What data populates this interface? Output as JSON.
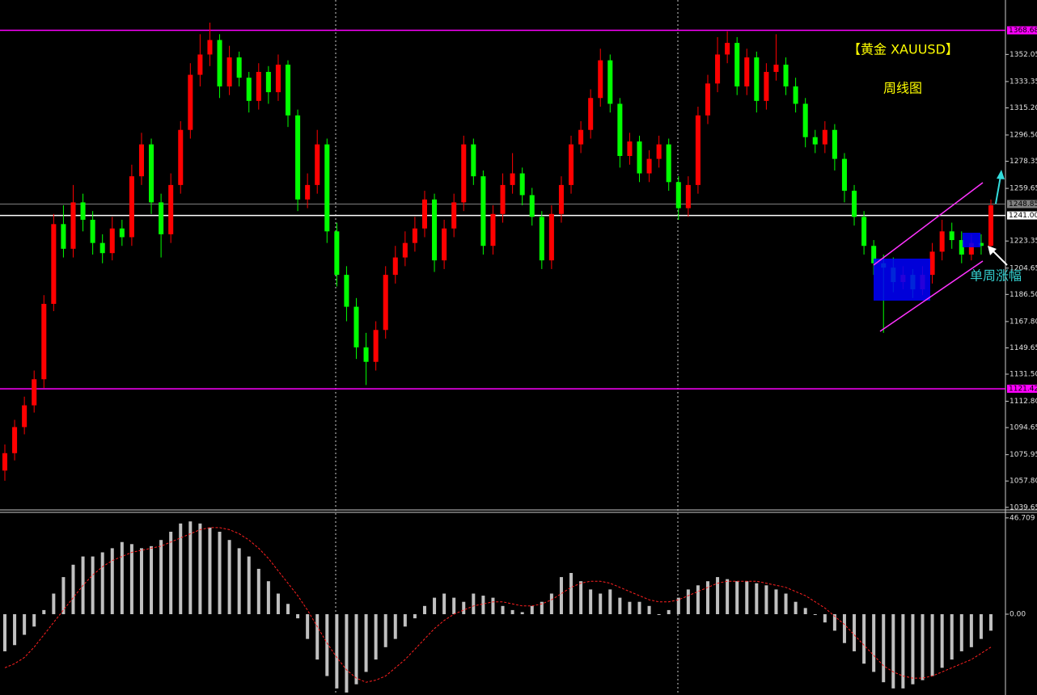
{
  "chart_data": {
    "type": "candlestick",
    "title": "【黄金 XAUUSD】",
    "subtitle": "周线图",
    "annotation": "单周涨幅",
    "up_color": "#ff0000",
    "down_color": "#00ff00",
    "open": [
      1065,
      1077,
      1095,
      1110,
      1128,
      1180,
      1235,
      1218,
      1250,
      1238,
      1222,
      1215,
      1232,
      1226,
      1268,
      1290,
      1250,
      1228,
      1262,
      1300,
      1338,
      1352,
      1362,
      1330,
      1350,
      1336,
      1320,
      1340,
      1326,
      1345,
      1310,
      1252,
      1262,
      1290,
      1230,
      1200,
      1178,
      1150,
      1140,
      1162,
      1200,
      1212,
      1222,
      1232,
      1252,
      1210,
      1232,
      1250,
      1290,
      1268,
      1220,
      1242,
      1262,
      1270,
      1255,
      1240,
      1210,
      1242,
      1262,
      1290,
      1300,
      1322,
      1348,
      1318,
      1282,
      1292,
      1270,
      1280,
      1290,
      1264,
      1246,
      1262,
      1310,
      1332,
      1352,
      1360,
      1330,
      1350,
      1320,
      1340,
      1345,
      1330,
      1318,
      1295,
      1290,
      1300,
      1280,
      1258,
      1240,
      1220,
      1208,
      1205,
      1195,
      1200,
      1190,
      1200,
      1216,
      1230,
      1224,
      1214,
      1222,
      1220
    ],
    "high": [
      1083,
      1100,
      1116,
      1134,
      1186,
      1242,
      1248,
      1262,
      1256,
      1244,
      1228,
      1240,
      1238,
      1276,
      1298,
      1294,
      1256,
      1270,
      1306,
      1346,
      1366,
      1374,
      1366,
      1358,
      1354,
      1340,
      1346,
      1344,
      1352,
      1348,
      1314,
      1270,
      1300,
      1294,
      1236,
      1206,
      1184,
      1160,
      1168,
      1206,
      1220,
      1230,
      1240,
      1258,
      1256,
      1238,
      1256,
      1296,
      1294,
      1272,
      1248,
      1270,
      1284,
      1274,
      1260,
      1244,
      1248,
      1268,
      1296,
      1306,
      1328,
      1356,
      1352,
      1322,
      1298,
      1296,
      1286,
      1296,
      1294,
      1268,
      1268,
      1316,
      1338,
      1364,
      1368,
      1364,
      1356,
      1354,
      1346,
      1366,
      1350,
      1336,
      1322,
      1300,
      1306,
      1304,
      1284,
      1262,
      1244,
      1224,
      1214,
      1212,
      1206,
      1204,
      1206,
      1222,
      1238,
      1236,
      1230,
      1228,
      1228,
      1252
    ],
    "low": [
      1058,
      1072,
      1090,
      1105,
      1122,
      1175,
      1212,
      1212,
      1230,
      1214,
      1208,
      1210,
      1220,
      1220,
      1262,
      1242,
      1212,
      1222,
      1256,
      1294,
      1330,
      1344,
      1322,
      1324,
      1330,
      1312,
      1314,
      1318,
      1320,
      1302,
      1244,
      1246,
      1256,
      1222,
      1192,
      1168,
      1142,
      1124,
      1134,
      1156,
      1194,
      1206,
      1216,
      1226,
      1202,
      1204,
      1226,
      1244,
      1262,
      1214,
      1214,
      1236,
      1256,
      1248,
      1234,
      1204,
      1204,
      1236,
      1256,
      1284,
      1294,
      1316,
      1312,
      1274,
      1276,
      1264,
      1264,
      1274,
      1258,
      1238,
      1240,
      1256,
      1304,
      1326,
      1346,
      1324,
      1324,
      1312,
      1314,
      1334,
      1324,
      1312,
      1288,
      1284,
      1284,
      1272,
      1250,
      1234,
      1214,
      1200,
      1160,
      1188,
      1190,
      1184,
      1186,
      1194,
      1210,
      1218,
      1208,
      1210,
      1214,
      1216
    ],
    "close": [
      1077,
      1095,
      1110,
      1128,
      1180,
      1235,
      1218,
      1250,
      1238,
      1222,
      1215,
      1232,
      1226,
      1268,
      1290,
      1250,
      1228,
      1262,
      1300,
      1338,
      1352,
      1362,
      1330,
      1350,
      1336,
      1320,
      1340,
      1326,
      1345,
      1310,
      1252,
      1262,
      1290,
      1230,
      1200,
      1178,
      1150,
      1140,
      1162,
      1200,
      1212,
      1222,
      1232,
      1252,
      1210,
      1232,
      1250,
      1290,
      1268,
      1220,
      1242,
      1262,
      1270,
      1255,
      1240,
      1210,
      1242,
      1262,
      1290,
      1300,
      1322,
      1348,
      1318,
      1282,
      1292,
      1270,
      1280,
      1290,
      1264,
      1246,
      1262,
      1310,
      1332,
      1352,
      1360,
      1330,
      1350,
      1320,
      1340,
      1345,
      1330,
      1318,
      1295,
      1290,
      1300,
      1280,
      1258,
      1240,
      1220,
      1208,
      1205,
      1195,
      1200,
      1190,
      1200,
      1216,
      1230,
      1224,
      1214,
      1222,
      1220,
      1248
    ],
    "ylim": [
      1038.4,
      1389.6
    ],
    "yticks": [
      1352.05,
      1333.35,
      {
        "value": 1315.2,
        "label": "1315.20"
      },
      {
        "value": 1296.5,
        "label": "1296.50"
      },
      1278.35,
      1259.65,
      1223.35,
      1204.65,
      {
        "value": 1186.5,
        "label": "1186.50"
      },
      {
        "value": 1167.8,
        "label": "1167.80"
      },
      1149.65,
      {
        "value": 1131.5,
        "label": "1131.50"
      },
      {
        "value": 1112.8,
        "label": "1112.80"
      },
      1094.65,
      1075.95,
      {
        "value": 1057.8,
        "label": "1057.80"
      },
      1039.65
    ],
    "lines": [
      {
        "value": 1368.68,
        "label": "1368.68",
        "color": "#ff00ff"
      },
      {
        "value": 1248.85,
        "label": "1248.85",
        "color": "#808080"
      },
      {
        "value": 1241,
        "label": "1241.00",
        "color": "#ffffff"
      },
      {
        "value": 1121.42,
        "label": "1121.42",
        "color": "#ff00ff"
      }
    ],
    "macd": {
      "histogram": [
        -18,
        -15,
        -10,
        -6,
        2,
        10,
        18,
        24,
        28,
        28,
        30,
        32,
        35,
        34,
        32,
        33,
        36,
        40,
        44,
        45,
        44,
        42,
        40,
        36,
        32,
        28,
        22,
        16,
        10,
        5,
        -2,
        -12,
        -22,
        -30,
        -36,
        -38,
        -34,
        -28,
        -22,
        -16,
        -12,
        -6,
        -2,
        4,
        8,
        10,
        8,
        6,
        10,
        9,
        8,
        4,
        2,
        1,
        4,
        6,
        10,
        18,
        20,
        16,
        12,
        10,
        12,
        8,
        6,
        6,
        4,
        0,
        2,
        8,
        12,
        14,
        16,
        18,
        17,
        16,
        16,
        15,
        14,
        12,
        10,
        6,
        3,
        0,
        -4,
        -8,
        -14,
        -18,
        -24,
        -28,
        -33,
        -36,
        -36,
        -34,
        -32,
        -30,
        -26,
        -22,
        -18,
        -16,
        -12,
        -8
      ],
      "signal": [
        -26,
        -24,
        -21,
        -16,
        -10,
        -4,
        2,
        8,
        14,
        19,
        23,
        26,
        28,
        30,
        31,
        32,
        33,
        35,
        37,
        39,
        41,
        42,
        42,
        41,
        39,
        36,
        32,
        27,
        21,
        15,
        9,
        2,
        -6,
        -14,
        -21,
        -27,
        -31,
        -33,
        -32,
        -30,
        -26,
        -22,
        -17,
        -12,
        -7,
        -3,
        0,
        2,
        4,
        5,
        6,
        6,
        5,
        4,
        4,
        5,
        7,
        10,
        13,
        15,
        16,
        16,
        15,
        13,
        11,
        9,
        7,
        6,
        6,
        7,
        9,
        11,
        13,
        15,
        16,
        16,
        16,
        16,
        15,
        14,
        13,
        11,
        9,
        6,
        3,
        -1,
        -5,
        -10,
        -15,
        -20,
        -25,
        -28,
        -30,
        -31,
        -31,
        -30,
        -28,
        -26,
        -24,
        -22,
        -19,
        -16
      ],
      "histogram_color": "#c0c0c0",
      "signal_color": "#ff2020",
      "ylim": [
        -39.2,
        49.4
      ],
      "yticks": [
        46.709,
        {
          "value": 0,
          "label": "0.00"
        }
      ]
    }
  }
}
